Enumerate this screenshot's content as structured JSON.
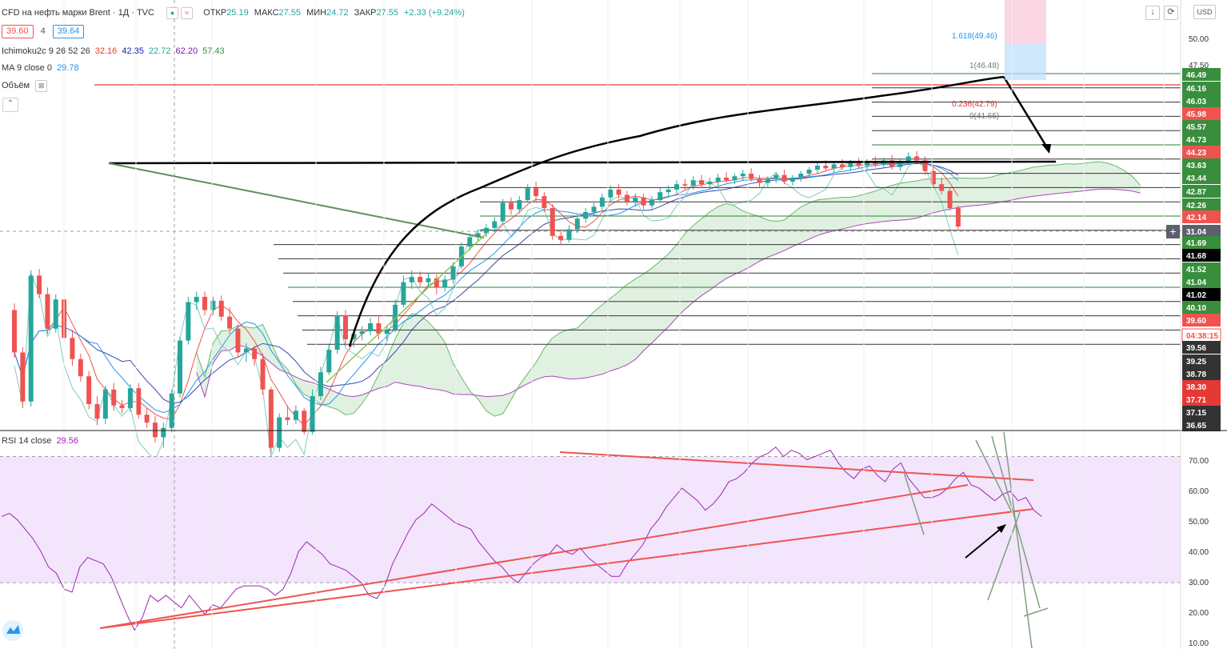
{
  "header": {
    "title": "CFD на нефть марки Brent · 1Д · TVC",
    "ohlc": [
      {
        "label": "ОТКР",
        "value": "25.19"
      },
      {
        "label": "МАКС",
        "value": "27.55"
      },
      {
        "label": "МИН",
        "value": "24.72"
      },
      {
        "label": "ЗАКР",
        "value": "27.55"
      }
    ],
    "change": "+2.33 (+9.24%)",
    "bid": "39.60",
    "spread": "4",
    "ask": "39.64",
    "currency": "USD"
  },
  "indicators": {
    "ichimoku": {
      "label": "Ichimoku2c 9 26 52 26",
      "values": [
        "32.16",
        "42.35",
        "22.72",
        "62.20",
        "57.43"
      ],
      "colors": [
        "#e53935",
        "#1e22aa",
        "#26a69a",
        "#7b1fa2",
        "#388e3c"
      ]
    },
    "ma": {
      "label": "MA 9 close 0",
      "value": "29.78",
      "color": "#2196f3"
    },
    "volume": {
      "label": "Объём"
    },
    "rsi": {
      "label": "RSI 14 close",
      "value": "29.56",
      "color": "#9c27b0"
    }
  },
  "icons": [
    "eye-icon",
    "wave-icon",
    "download-icon",
    "fullscreen-icon",
    "collapse-icon",
    "plus-icon",
    "tradingview-logo-icon"
  ],
  "colors": {
    "up": "#26a69a",
    "down": "#ef5350",
    "cloud": "#c8e6c9",
    "rsi_band": "#f3e5fc"
  },
  "chart_data": [
    {
      "type": "candlestick",
      "price_axis_ticks": [
        "50.00",
        "47.50"
      ],
      "price_axis_labels": [
        {
          "value": "1.618(49.46)",
          "kind": "fib-text",
          "color": "#2196f3",
          "price": 49.46
        },
        {
          "value": "1(46.48)",
          "kind": "fib-text",
          "color": "#777777",
          "price": 46.48
        },
        {
          "value": "0.236(42.79)",
          "kind": "fib-text",
          "color": "#e53935",
          "price": 42.79
        },
        {
          "value": "0(41.65)",
          "kind": "fib-text",
          "color": "#777777",
          "price": 41.65
        },
        {
          "value": "46.49",
          "bg": "#388e3c"
        },
        {
          "value": "46.16",
          "bg": "#388e3c"
        },
        {
          "value": "46.03",
          "bg": "#388e3c"
        },
        {
          "value": "45.98",
          "bg": "#ef5350"
        },
        {
          "value": "45.57",
          "bg": "#388e3c"
        },
        {
          "value": "44.73",
          "bg": "#388e3c"
        },
        {
          "value": "44.23",
          "bg": "#ef5350"
        },
        {
          "value": "43.63",
          "bg": "#388e3c"
        },
        {
          "value": "43.44",
          "bg": "#388e3c"
        },
        {
          "value": "42.87",
          "bg": "#388e3c"
        },
        {
          "value": "42.26",
          "bg": "#388e3c"
        },
        {
          "value": "42.14",
          "bg": "#ef5350"
        },
        {
          "value": "31.04",
          "bg": "#5d606b"
        },
        {
          "value": "41.69",
          "bg": "#388e3c"
        },
        {
          "value": "41.68",
          "bg": "#000000"
        },
        {
          "value": "41.52",
          "bg": "#388e3c"
        },
        {
          "value": "41.04",
          "bg": "#388e3c"
        },
        {
          "value": "41.02",
          "bg": "#000000"
        },
        {
          "value": "40.10",
          "bg": "#388e3c"
        },
        {
          "value": "39.60",
          "bg": "#ef5350"
        },
        {
          "value": "04:38:15",
          "bg": "#ffffff",
          "fg": "#ef5350"
        },
        {
          "value": "39.56",
          "bg": "#333333"
        },
        {
          "value": "39.25",
          "bg": "#333333"
        },
        {
          "value": "38.78",
          "bg": "#333333"
        },
        {
          "value": "38.30",
          "bg": "#e53935"
        },
        {
          "value": "37.71",
          "bg": "#e53935"
        },
        {
          "value": "37.15",
          "bg": "#333333"
        },
        {
          "value": "36.65",
          "bg": "#333333"
        }
      ],
      "price_range": [
        23,
        52
      ],
      "candles": [
        {
          "o": 29.8,
          "h": 30.3,
          "l": 26.2,
          "c": 26.6
        },
        {
          "o": 26.6,
          "h": 27.0,
          "l": 22.4,
          "c": 22.9
        },
        {
          "o": 22.9,
          "h": 32.8,
          "l": 22.5,
          "c": 32.4
        },
        {
          "o": 32.4,
          "h": 32.9,
          "l": 30.7,
          "c": 31.0
        },
        {
          "o": 31.0,
          "h": 31.5,
          "l": 28.0,
          "c": 28.4
        },
        {
          "o": 28.4,
          "h": 31.0,
          "l": 28.1,
          "c": 30.6
        },
        {
          "o": 30.6,
          "h": 31.0,
          "l": 27.3,
          "c": 27.7
        },
        {
          "o": 27.7,
          "h": 28.3,
          "l": 25.6,
          "c": 26.1
        },
        {
          "o": 26.1,
          "h": 26.5,
          "l": 24.4,
          "c": 24.8
        },
        {
          "o": 24.8,
          "h": 25.2,
          "l": 22.3,
          "c": 22.7
        },
        {
          "o": 22.7,
          "h": 23.3,
          "l": 21.1,
          "c": 21.6
        },
        {
          "o": 21.6,
          "h": 24.1,
          "l": 21.2,
          "c": 23.8
        },
        {
          "o": 23.8,
          "h": 24.3,
          "l": 22.2,
          "c": 22.6
        },
        {
          "o": 22.6,
          "h": 23.0,
          "l": 22.0,
          "c": 22.4
        },
        {
          "o": 22.4,
          "h": 24.2,
          "l": 22.1,
          "c": 23.9
        },
        {
          "o": 23.9,
          "h": 24.3,
          "l": 21.6,
          "c": 21.9
        },
        {
          "o": 21.9,
          "h": 22.4,
          "l": 20.9,
          "c": 21.3
        },
        {
          "o": 21.3,
          "h": 21.8,
          "l": 19.8,
          "c": 20.2
        },
        {
          "o": 20.2,
          "h": 21.3,
          "l": 19.4,
          "c": 20.9
        },
        {
          "o": 20.9,
          "h": 23.8,
          "l": 20.6,
          "c": 23.5
        },
        {
          "o": 23.5,
          "h": 27.8,
          "l": 23.2,
          "c": 27.5
        },
        {
          "o": 27.5,
          "h": 30.8,
          "l": 27.2,
          "c": 30.4
        },
        {
          "o": 30.4,
          "h": 31.2,
          "l": 29.8,
          "c": 30.8
        },
        {
          "o": 30.8,
          "h": 31.2,
          "l": 29.4,
          "c": 29.8
        },
        {
          "o": 29.8,
          "h": 30.8,
          "l": 29.4,
          "c": 30.5
        },
        {
          "o": 30.5,
          "h": 30.9,
          "l": 29.0,
          "c": 29.3
        },
        {
          "o": 29.3,
          "h": 30.0,
          "l": 28.0,
          "c": 28.4
        },
        {
          "o": 28.4,
          "h": 28.7,
          "l": 26.2,
          "c": 26.6
        },
        {
          "o": 26.6,
          "h": 27.3,
          "l": 25.9,
          "c": 26.9
        },
        {
          "o": 26.9,
          "h": 27.1,
          "l": 25.6,
          "c": 26.1
        },
        {
          "o": 26.1,
          "h": 26.5,
          "l": 23.4,
          "c": 23.8
        },
        {
          "o": 23.8,
          "h": 24.0,
          "l": 19.0,
          "c": 19.4
        },
        {
          "o": 19.4,
          "h": 22.0,
          "l": 19.1,
          "c": 21.7
        },
        {
          "o": 21.7,
          "h": 22.6,
          "l": 21.1,
          "c": 21.5
        },
        {
          "o": 21.5,
          "h": 22.6,
          "l": 21.2,
          "c": 22.2
        },
        {
          "o": 22.2,
          "h": 22.4,
          "l": 20.4,
          "c": 20.6
        },
        {
          "o": 20.6,
          "h": 23.8,
          "l": 20.4,
          "c": 23.3
        },
        {
          "o": 23.3,
          "h": 25.5,
          "l": 23.0,
          "c": 25.1
        },
        {
          "o": 25.1,
          "h": 27.2,
          "l": 24.9,
          "c": 26.8
        },
        {
          "o": 26.8,
          "h": 29.7,
          "l": 26.5,
          "c": 29.4
        },
        {
          "o": 29.4,
          "h": 29.8,
          "l": 27.1,
          "c": 27.6
        },
        {
          "o": 27.6,
          "h": 28.4,
          "l": 27.0,
          "c": 28.0
        },
        {
          "o": 28.0,
          "h": 28.6,
          "l": 27.5,
          "c": 28.2
        },
        {
          "o": 28.2,
          "h": 29.2,
          "l": 27.9,
          "c": 28.8
        },
        {
          "o": 28.8,
          "h": 29.4,
          "l": 27.6,
          "c": 28.0
        },
        {
          "o": 28.0,
          "h": 28.6,
          "l": 27.5,
          "c": 28.3
        },
        {
          "o": 28.3,
          "h": 30.6,
          "l": 28.1,
          "c": 30.2
        },
        {
          "o": 30.2,
          "h": 32.4,
          "l": 30.0,
          "c": 31.9
        },
        {
          "o": 31.9,
          "h": 32.8,
          "l": 31.4,
          "c": 32.3
        },
        {
          "o": 32.3,
          "h": 32.7,
          "l": 31.5,
          "c": 31.9
        },
        {
          "o": 31.9,
          "h": 32.6,
          "l": 31.5,
          "c": 32.2
        },
        {
          "o": 32.2,
          "h": 32.5,
          "l": 31.0,
          "c": 31.5
        },
        {
          "o": 31.5,
          "h": 32.4,
          "l": 31.2,
          "c": 32.1
        },
        {
          "o": 32.1,
          "h": 33.4,
          "l": 31.8,
          "c": 33.1
        },
        {
          "o": 33.1,
          "h": 34.9,
          "l": 32.9,
          "c": 34.6
        },
        {
          "o": 34.6,
          "h": 35.6,
          "l": 34.3,
          "c": 35.3
        },
        {
          "o": 35.3,
          "h": 35.9,
          "l": 35.0,
          "c": 35.6
        },
        {
          "o": 35.6,
          "h": 36.3,
          "l": 35.3,
          "c": 36.0
        },
        {
          "o": 36.0,
          "h": 36.8,
          "l": 35.7,
          "c": 36.5
        },
        {
          "o": 36.5,
          "h": 38.2,
          "l": 36.3,
          "c": 37.9
        },
        {
          "o": 37.9,
          "h": 38.3,
          "l": 37.0,
          "c": 37.4
        },
        {
          "o": 37.4,
          "h": 38.4,
          "l": 37.1,
          "c": 38.1
        },
        {
          "o": 38.1,
          "h": 39.3,
          "l": 37.9,
          "c": 39.0
        },
        {
          "o": 39.0,
          "h": 39.5,
          "l": 38.0,
          "c": 38.4
        },
        {
          "o": 38.4,
          "h": 38.7,
          "l": 37.2,
          "c": 37.5
        },
        {
          "o": 37.5,
          "h": 37.8,
          "l": 35.1,
          "c": 35.4
        },
        {
          "o": 35.4,
          "h": 35.8,
          "l": 34.7,
          "c": 35.1
        },
        {
          "o": 35.1,
          "h": 36.2,
          "l": 34.9,
          "c": 35.9
        },
        {
          "o": 35.9,
          "h": 37.0,
          "l": 35.6,
          "c": 36.7
        },
        {
          "o": 36.7,
          "h": 37.5,
          "l": 36.4,
          "c": 37.2
        },
        {
          "o": 37.2,
          "h": 37.9,
          "l": 36.9,
          "c": 37.6
        },
        {
          "o": 37.6,
          "h": 38.6,
          "l": 37.3,
          "c": 38.3
        },
        {
          "o": 38.3,
          "h": 39.2,
          "l": 38.0,
          "c": 38.9
        },
        {
          "o": 38.9,
          "h": 39.3,
          "l": 38.2,
          "c": 38.5
        },
        {
          "o": 38.5,
          "h": 38.8,
          "l": 37.7,
          "c": 38.0
        },
        {
          "o": 38.0,
          "h": 38.6,
          "l": 37.6,
          "c": 38.3
        },
        {
          "o": 38.3,
          "h": 38.6,
          "l": 37.4,
          "c": 37.7
        },
        {
          "o": 37.7,
          "h": 38.4,
          "l": 37.4,
          "c": 38.1
        },
        {
          "o": 38.1,
          "h": 39.0,
          "l": 37.9,
          "c": 38.7
        },
        {
          "o": 38.7,
          "h": 39.2,
          "l": 38.3,
          "c": 38.9
        },
        {
          "o": 38.9,
          "h": 39.6,
          "l": 38.6,
          "c": 39.3
        },
        {
          "o": 39.3,
          "h": 39.7,
          "l": 38.9,
          "c": 39.2
        },
        {
          "o": 39.2,
          "h": 39.9,
          "l": 38.9,
          "c": 39.6
        },
        {
          "o": 39.6,
          "h": 40.0,
          "l": 39.0,
          "c": 39.3
        },
        {
          "o": 39.3,
          "h": 39.8,
          "l": 38.9,
          "c": 39.5
        },
        {
          "o": 39.5,
          "h": 40.1,
          "l": 39.2,
          "c": 39.8
        },
        {
          "o": 39.8,
          "h": 40.2,
          "l": 39.4,
          "c": 39.6
        },
        {
          "o": 39.6,
          "h": 40.1,
          "l": 39.3,
          "c": 39.9
        },
        {
          "o": 39.9,
          "h": 40.4,
          "l": 39.6,
          "c": 40.1
        },
        {
          "o": 40.1,
          "h": 40.5,
          "l": 39.5,
          "c": 39.7
        },
        {
          "o": 39.7,
          "h": 40.0,
          "l": 39.1,
          "c": 39.4
        },
        {
          "o": 39.4,
          "h": 39.9,
          "l": 39.0,
          "c": 39.7
        },
        {
          "o": 39.7,
          "h": 40.2,
          "l": 39.4,
          "c": 40.0
        },
        {
          "o": 40.0,
          "h": 40.4,
          "l": 39.3,
          "c": 39.5
        },
        {
          "o": 39.5,
          "h": 40.0,
          "l": 39.2,
          "c": 39.8
        },
        {
          "o": 39.8,
          "h": 40.3,
          "l": 39.5,
          "c": 40.1
        },
        {
          "o": 40.1,
          "h": 40.6,
          "l": 39.8,
          "c": 40.4
        },
        {
          "o": 40.4,
          "h": 40.9,
          "l": 40.1,
          "c": 40.7
        },
        {
          "o": 40.7,
          "h": 41.1,
          "l": 40.3,
          "c": 40.5
        },
        {
          "o": 40.5,
          "h": 41.0,
          "l": 40.2,
          "c": 40.8
        },
        {
          "o": 40.8,
          "h": 41.2,
          "l": 40.4,
          "c": 40.6
        },
        {
          "o": 40.6,
          "h": 41.1,
          "l": 40.3,
          "c": 40.9
        },
        {
          "o": 40.9,
          "h": 41.3,
          "l": 40.5,
          "c": 40.7
        },
        {
          "o": 40.7,
          "h": 41.2,
          "l": 40.4,
          "c": 41.0
        },
        {
          "o": 41.0,
          "h": 41.4,
          "l": 40.6,
          "c": 40.8
        },
        {
          "o": 40.8,
          "h": 41.3,
          "l": 40.5,
          "c": 41.1
        },
        {
          "o": 41.1,
          "h": 41.5,
          "l": 40.4,
          "c": 40.6
        },
        {
          "o": 40.6,
          "h": 41.2,
          "l": 40.3,
          "c": 41.0
        },
        {
          "o": 41.0,
          "h": 41.7,
          "l": 40.8,
          "c": 41.4
        },
        {
          "o": 41.4,
          "h": 41.8,
          "l": 40.9,
          "c": 41.1
        },
        {
          "o": 41.1,
          "h": 41.4,
          "l": 40.0,
          "c": 40.3
        },
        {
          "o": 40.3,
          "h": 40.6,
          "l": 39.1,
          "c": 39.3
        },
        {
          "o": 39.3,
          "h": 39.8,
          "l": 38.5,
          "c": 38.8
        },
        {
          "o": 38.8,
          "h": 39.0,
          "l": 37.3,
          "c": 37.5
        },
        {
          "o": 37.5,
          "h": 37.7,
          "l": 35.9,
          "c": 36.1
        }
      ],
      "annotations": [
        {
          "kind": "horizontal",
          "prices": [
            46.49,
            46.16,
            46.03,
            45.98,
            45.57,
            44.73,
            44.23,
            43.63,
            43.44,
            42.87,
            42.26,
            42.14,
            41.69,
            41.68,
            41.52,
            41.04,
            41.02,
            40.1,
            39.6,
            39.56
          ]
        },
        {
          "kind": "arrow-down",
          "label": ""
        }
      ]
    },
    {
      "type": "line",
      "name": "RSI 14 close",
      "y_ticks": [
        "70.00",
        "60.00",
        "50.00",
        "40.00",
        "30.00",
        "20.00",
        "10.00"
      ],
      "ylim": [
        10,
        78
      ],
      "band": [
        30,
        70
      ],
      "values": [
        51,
        52,
        50,
        47,
        44,
        40,
        35,
        33,
        28,
        27,
        35,
        38,
        37,
        36,
        32,
        26,
        20,
        15,
        19,
        26,
        24,
        26,
        24,
        22,
        26,
        23,
        20,
        23,
        22,
        25,
        28,
        29,
        29,
        29,
        28,
        26,
        28,
        33,
        40,
        43,
        41,
        39,
        36,
        35,
        34,
        32,
        30,
        26,
        25,
        29,
        36,
        41,
        46,
        50,
        52,
        55,
        53,
        51,
        49,
        48,
        47,
        43,
        40,
        37,
        35,
        32,
        30,
        33,
        36,
        38,
        39,
        42,
        40,
        39,
        41,
        38,
        36,
        34,
        32,
        32,
        36,
        39,
        42,
        47,
        50,
        54,
        57,
        60,
        58,
        56,
        53,
        55,
        58,
        62,
        63,
        65,
        68,
        70,
        71,
        73,
        70,
        72,
        71,
        69,
        70,
        71,
        72,
        68,
        65,
        63,
        66,
        67,
        64,
        62,
        66,
        68,
        63,
        60,
        57,
        57,
        58,
        60,
        63,
        65,
        61,
        60,
        58,
        56,
        58,
        59,
        56,
        57,
        53,
        51
      ]
    }
  ]
}
